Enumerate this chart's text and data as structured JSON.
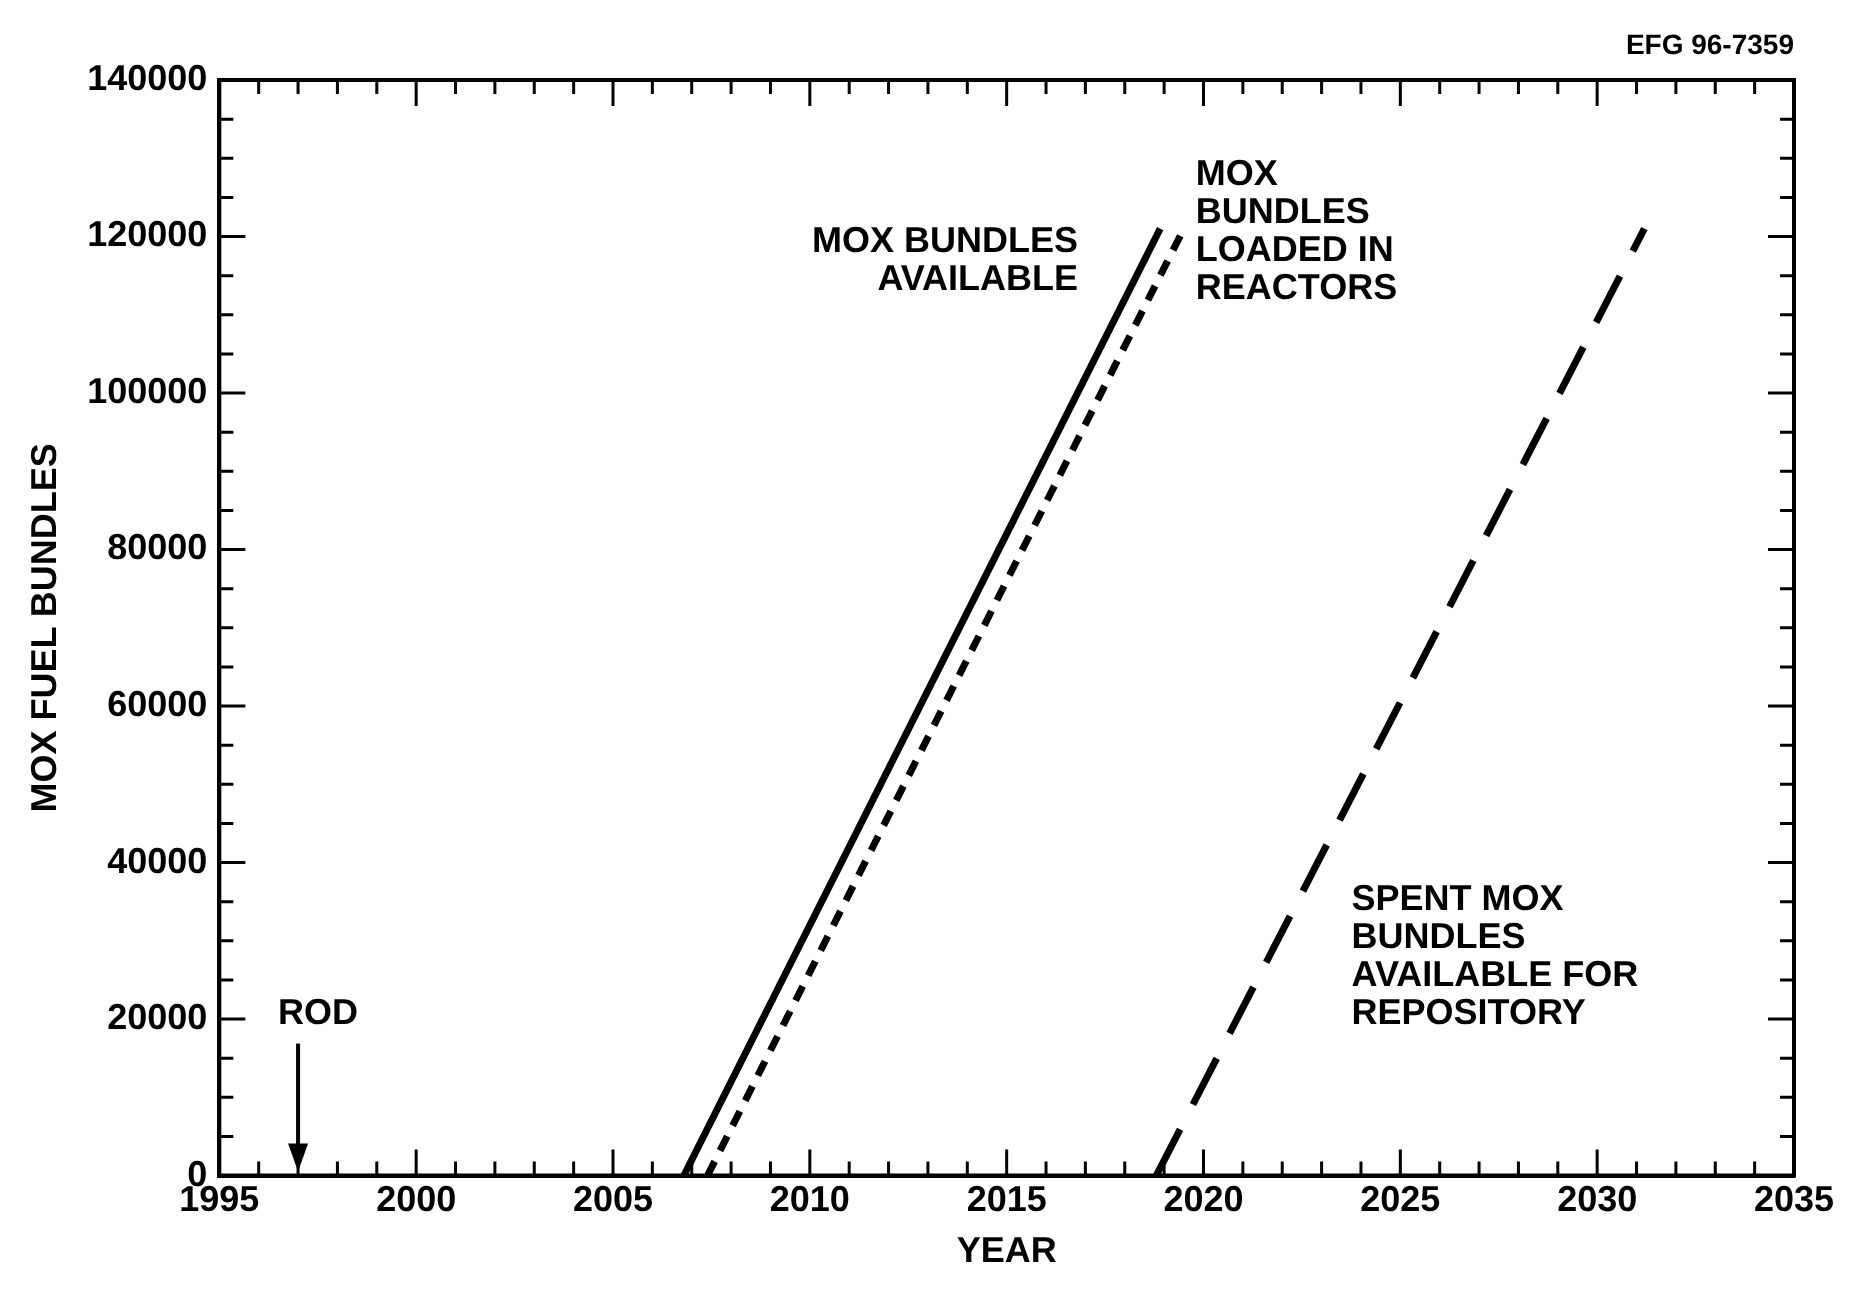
{
  "chart_data": {
    "type": "line",
    "xlabel": "YEAR",
    "ylabel": "MOX FUEL BUNDLES",
    "xlim": [
      1995,
      2035
    ],
    "xticks": [
      1995,
      {
        "value": 1996,
        "label": null
      },
      {
        "value": 1997,
        "label": null
      },
      {
        "value": 1998,
        "label": null
      },
      {
        "value": 1999,
        "label": null
      },
      2000,
      {
        "value": 2001,
        "label": null
      },
      {
        "value": 2002,
        "label": null
      },
      {
        "value": 2003,
        "label": null
      },
      {
        "value": 2004,
        "label": null
      },
      2005,
      {
        "value": 2006,
        "label": null
      },
      {
        "value": 2007,
        "label": null
      },
      {
        "value": 2008,
        "label": null
      },
      {
        "value": 2009,
        "label": null
      },
      2010,
      {
        "value": 2011,
        "label": null
      },
      {
        "value": 2012,
        "label": null
      },
      {
        "value": 2013,
        "label": null
      },
      {
        "value": 2014,
        "label": null
      },
      2015,
      {
        "value": 2016,
        "label": null
      },
      {
        "value": 2017,
        "label": null
      },
      {
        "value": 2018,
        "label": null
      },
      {
        "value": 2019,
        "label": null
      },
      2020,
      {
        "value": 2021,
        "label": null
      },
      {
        "value": 2022,
        "label": null
      },
      {
        "value": 2023,
        "label": null
      },
      {
        "value": 2024,
        "label": null
      },
      2025,
      {
        "value": 2026,
        "label": null
      },
      {
        "value": 2027,
        "label": null
      },
      {
        "value": 2028,
        "label": null
      },
      {
        "value": 2029,
        "label": null
      },
      2030,
      {
        "value": 2031,
        "label": null
      },
      {
        "value": 2032,
        "label": null
      },
      {
        "value": 2033,
        "label": null
      },
      {
        "value": 2034,
        "label": null
      },
      2035
    ],
    "ylim": [
      0,
      140000
    ],
    "yticks": [
      0,
      {
        "value": 5000,
        "label": null
      },
      {
        "value": 10000,
        "label": null
      },
      {
        "value": 15000,
        "label": null
      },
      20000,
      {
        "value": 25000,
        "label": null
      },
      {
        "value": 30000,
        "label": null
      },
      {
        "value": 35000,
        "label": null
      },
      40000,
      {
        "value": 45000,
        "label": null
      },
      {
        "value": 50000,
        "label": null
      },
      {
        "value": 55000,
        "label": null
      },
      60000,
      {
        "value": 65000,
        "label": null
      },
      {
        "value": 70000,
        "label": null
      },
      {
        "value": 75000,
        "label": null
      },
      80000,
      {
        "value": 85000,
        "label": null
      },
      {
        "value": 90000,
        "label": null
      },
      {
        "value": 95000,
        "label": null
      },
      100000,
      {
        "value": 105000,
        "label": null
      },
      {
        "value": 110000,
        "label": null
      },
      {
        "value": 115000,
        "label": null
      },
      120000,
      {
        "value": 125000,
        "label": null
      },
      {
        "value": 130000,
        "label": null
      },
      {
        "value": 135000,
        "label": null
      },
      140000
    ],
    "grid": false,
    "legend": false,
    "marker": "none",
    "series": [
      {
        "name": "MOX BUNDLES AVAILABLE",
        "color": "#000000",
        "line_style": "solid",
        "x": [
          2006.8,
          2018.9
        ],
        "values": [
          0,
          121000
        ]
      },
      {
        "name": "MOX BUNDLES LOADED IN REACTORS",
        "color": "#000000",
        "line_style": "dotted",
        "x": [
          2007.4,
          2019.5
        ],
        "values": [
          0,
          121000
        ]
      },
      {
        "name": "SPENT MOX BUNDLES AVAILABLE FOR REPOSITORY",
        "color": "#000000",
        "line_style": "dashed",
        "x": [
          2018.8,
          2031.2
        ],
        "values": [
          0,
          121000
        ]
      }
    ],
    "annotations": [
      "EFG 96-7359",
      "ROD"
    ]
  }
}
